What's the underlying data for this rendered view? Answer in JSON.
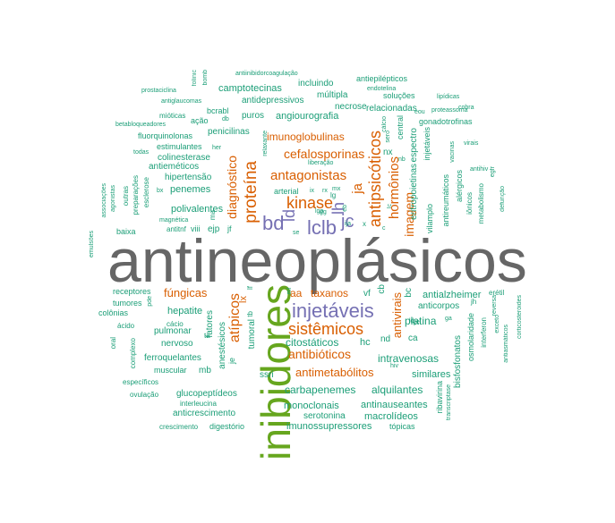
{
  "palette": {
    "teal": "#1b9e77",
    "orange": "#d95f02",
    "purple": "#7570b3",
    "green": "#66a61e",
    "gray": "#666666"
  },
  "words": [
    {
      "t": "antineoplásicos",
      "c": "gray"
    },
    {
      "t": "inibidores",
      "c": "green"
    },
    {
      "t": "proteína",
      "c": "orange"
    },
    {
      "t": "injetáveis",
      "c": "purple"
    },
    {
      "t": "sistêmicos",
      "c": "orange"
    },
    {
      "t": "kinase",
      "c": "orange"
    },
    {
      "t": "antagonistas",
      "c": "orange"
    },
    {
      "t": "lclb",
      "c": "purple"
    },
    {
      "t": "bd",
      "c": "purple"
    },
    {
      "t": "jc",
      "c": "purple"
    },
    {
      "t": "lh",
      "c": "purple"
    },
    {
      "t": "ld",
      "c": "purple"
    },
    {
      "t": "antipsicóticos",
      "c": "orange"
    },
    {
      "t": "hormônios",
      "c": "orange"
    },
    {
      "t": "imagem",
      "c": "orange"
    },
    {
      "t": "ja",
      "c": "orange"
    },
    {
      "t": "diagnóstico",
      "c": "orange"
    },
    {
      "t": "atípicos",
      "c": "orange"
    },
    {
      "t": "antivirais",
      "c": "orange"
    },
    {
      "t": "antibióticos",
      "c": "orange"
    },
    {
      "t": "antimetabólitos",
      "c": "orange"
    },
    {
      "t": "cefalosporinas",
      "c": "orange"
    },
    {
      "t": "imunoglobulinas",
      "c": "orange"
    },
    {
      "t": "fúngicas",
      "c": "orange"
    },
    {
      "t": "taxanos",
      "c": "orange"
    },
    {
      "t": "aa",
      "c": "orange"
    },
    {
      "t": "lx",
      "c": "orange"
    },
    {
      "t": "citostáticos",
      "c": "teal"
    },
    {
      "t": "intravenosas",
      "c": "teal"
    },
    {
      "t": "carbapenemes",
      "c": "teal"
    },
    {
      "t": "alquilantes",
      "c": "teal"
    },
    {
      "t": "platina",
      "c": "teal"
    },
    {
      "t": "hc",
      "c": "teal"
    },
    {
      "t": "anticrescimento",
      "c": "teal"
    },
    {
      "t": "antinauseantes",
      "c": "teal"
    },
    {
      "t": "monoclonais",
      "c": "teal"
    },
    {
      "t": "imunossupressores",
      "c": "teal"
    },
    {
      "t": "macrolídeos",
      "c": "teal"
    },
    {
      "t": "serotonina",
      "c": "teal"
    },
    {
      "t": "glucopeptídeos",
      "c": "teal"
    },
    {
      "t": "digestório",
      "c": "teal"
    },
    {
      "t": "crescimento",
      "c": "teal"
    },
    {
      "t": "tópicas",
      "c": "teal"
    },
    {
      "t": "bisfosfonatos",
      "c": "teal"
    },
    {
      "t": "similares",
      "c": "teal"
    },
    {
      "t": "antialzheimer",
      "c": "teal"
    },
    {
      "t": "anticorpos",
      "c": "teal"
    },
    {
      "t": "hepatite",
      "c": "teal"
    },
    {
      "t": "pulmonar",
      "c": "teal"
    },
    {
      "t": "nervoso",
      "c": "teal"
    },
    {
      "t": "ferroquelantes",
      "c": "teal"
    },
    {
      "t": "muscular",
      "c": "teal"
    },
    {
      "t": "anestésicos",
      "c": "teal"
    },
    {
      "t": "fatores",
      "c": "teal"
    },
    {
      "t": "tumoral",
      "c": "teal"
    },
    {
      "t": "ssri",
      "c": "teal"
    },
    {
      "t": "mb",
      "c": "teal"
    },
    {
      "t": "je",
      "c": "teal"
    },
    {
      "t": "receptores",
      "c": "teal"
    },
    {
      "t": "tumores",
      "c": "teal"
    },
    {
      "t": "colônias",
      "c": "teal"
    },
    {
      "t": "cácio",
      "c": "teal"
    },
    {
      "t": "ácido",
      "c": "teal"
    },
    {
      "t": "complexo",
      "c": "teal"
    },
    {
      "t": "específicos",
      "c": "teal"
    },
    {
      "t": "ovulação",
      "c": "teal"
    },
    {
      "t": "interleucina",
      "c": "teal"
    },
    {
      "t": "polivalentes",
      "c": "teal"
    },
    {
      "t": "penemes",
      "c": "teal"
    },
    {
      "t": "hipertensão",
      "c": "teal"
    },
    {
      "t": "antieméticos",
      "c": "teal"
    },
    {
      "t": "colinesterase",
      "c": "teal"
    },
    {
      "t": "estimulantes",
      "c": "teal"
    },
    {
      "t": "penicilinas",
      "c": "teal"
    },
    {
      "t": "puros",
      "c": "teal"
    },
    {
      "t": "angiourografia",
      "c": "teal"
    },
    {
      "t": "antidepressivos",
      "c": "teal"
    },
    {
      "t": "camptotecinas",
      "c": "teal"
    },
    {
      "t": "incluindo",
      "c": "teal"
    },
    {
      "t": "múltipla",
      "c": "teal"
    },
    {
      "t": "necrose",
      "c": "teal"
    },
    {
      "t": "relacionadas",
      "c": "teal"
    },
    {
      "t": "espectro",
      "c": "teal"
    },
    {
      "t": "eritropoietinas",
      "c": "teal"
    },
    {
      "t": "injetáveis",
      "c": "teal"
    },
    {
      "t": "central",
      "c": "teal"
    },
    {
      "t": "gonadotrofinas",
      "c": "teal"
    },
    {
      "t": "soluções",
      "c": "teal"
    },
    {
      "t": "antiepilépticos",
      "c": "teal"
    },
    {
      "t": "endotelina",
      "c": "teal"
    },
    {
      "t": "lipídicas",
      "c": "teal"
    },
    {
      "t": "proteassoma",
      "c": "teal"
    },
    {
      "t": "cobra",
      "c": "teal"
    },
    {
      "t": "virais",
      "c": "teal"
    },
    {
      "t": "vacinas",
      "c": "teal"
    },
    {
      "t": "antihiv",
      "c": "teal"
    },
    {
      "t": "egfr",
      "c": "teal"
    },
    {
      "t": "defunção",
      "c": "teal"
    },
    {
      "t": "metabolismo",
      "c": "teal"
    },
    {
      "t": "iônicos",
      "c": "teal"
    },
    {
      "t": "alérgicos",
      "c": "teal"
    },
    {
      "t": "antireumáticos",
      "c": "teal"
    },
    {
      "t": "vilamplo",
      "c": "teal"
    },
    {
      "t": "osmolaridade",
      "c": "teal"
    },
    {
      "t": "interferon",
      "c": "teal"
    },
    {
      "t": "exceto",
      "c": "teal"
    },
    {
      "t": "antiasmáticos",
      "c": "teal"
    },
    {
      "t": "corticosteróides",
      "c": "teal"
    },
    {
      "t": "reversa",
      "c": "teal"
    },
    {
      "t": "erétil",
      "c": "teal"
    },
    {
      "t": "ribavirina",
      "c": "teal"
    },
    {
      "t": "transcriptase",
      "c": "teal"
    },
    {
      "t": "hiv",
      "c": "teal"
    },
    {
      "t": "antiinibidorcoagulação",
      "c": "teal"
    },
    {
      "t": "prostaciclina",
      "c": "teal"
    },
    {
      "t": "antiglaucomas",
      "c": "teal"
    },
    {
      "t": "mióticas",
      "c": "teal"
    },
    {
      "t": "ação",
      "c": "teal"
    },
    {
      "t": "bcrabl",
      "c": "teal"
    },
    {
      "t": "betabloqueadores",
      "c": "teal"
    },
    {
      "t": "fluorquinolonas",
      "c": "teal"
    },
    {
      "t": "todas",
      "c": "teal"
    },
    {
      "t": "outras",
      "c": "teal"
    },
    {
      "t": "associações",
      "c": "teal"
    },
    {
      "t": "agonistas",
      "c": "teal"
    },
    {
      "t": "preparações",
      "c": "teal"
    },
    {
      "t": "esclerose",
      "c": "teal"
    },
    {
      "t": "magnética",
      "c": "teal"
    },
    {
      "t": "antitnf",
      "c": "teal"
    },
    {
      "t": "viii",
      "c": "teal"
    },
    {
      "t": "baixa",
      "c": "teal"
    },
    {
      "t": "emulsões",
      "c": "teal"
    },
    {
      "t": "oral",
      "c": "teal"
    },
    {
      "t": "pde",
      "c": "teal"
    },
    {
      "t": "arterial",
      "c": "teal"
    },
    {
      "t": "liberação",
      "c": "teal"
    },
    {
      "t": "relaxante",
      "c": "teal"
    },
    {
      "t": "ejp",
      "c": "teal"
    },
    {
      "t": "jf",
      "c": "teal"
    },
    {
      "t": "ma",
      "c": "teal"
    },
    {
      "t": "folínic",
      "c": "teal"
    },
    {
      "t": "bomb",
      "c": "teal"
    },
    {
      "t": "nx",
      "c": "teal"
    },
    {
      "t": "nd",
      "c": "teal"
    },
    {
      "t": "ca",
      "c": "teal"
    },
    {
      "t": "vf",
      "c": "teal"
    },
    {
      "t": "cb",
      "c": "teal"
    },
    {
      "t": "bc",
      "c": "teal"
    },
    {
      "t": "sero",
      "c": "teal"
    },
    {
      "t": "lg",
      "c": "teal"
    },
    {
      "t": "rx",
      "c": "teal"
    },
    {
      "t": "mx",
      "c": "teal"
    },
    {
      "t": "ija",
      "c": "teal"
    },
    {
      "t": "se",
      "c": "teal"
    },
    {
      "t": "ld",
      "c": "teal"
    },
    {
      "t": "ge",
      "c": "teal"
    },
    {
      "t": "ga",
      "c": "teal"
    },
    {
      "t": "jh",
      "c": "teal"
    },
    {
      "t": "gg",
      "c": "teal"
    },
    {
      "t": "ta",
      "c": "teal"
    },
    {
      "t": "eou",
      "c": "teal"
    },
    {
      "t": "cálcio",
      "c": "teal"
    },
    {
      "t": "nb",
      "c": "teal"
    },
    {
      "t": "her",
      "c": "teal"
    },
    {
      "t": "db",
      "c": "teal"
    },
    {
      "t": "bx",
      "c": "teal"
    },
    {
      "t": "eb",
      "c": "teal"
    },
    {
      "t": "lf",
      "c": "teal"
    },
    {
      "t": "tb",
      "c": "teal"
    },
    {
      "t": "lc",
      "c": "teal"
    },
    {
      "t": "ml",
      "c": "teal"
    },
    {
      "t": "ix",
      "c": "teal"
    },
    {
      "t": "lgp",
      "c": "teal"
    },
    {
      "t": "c",
      "c": "teal"
    },
    {
      "t": "x",
      "c": "teal"
    }
  ]
}
